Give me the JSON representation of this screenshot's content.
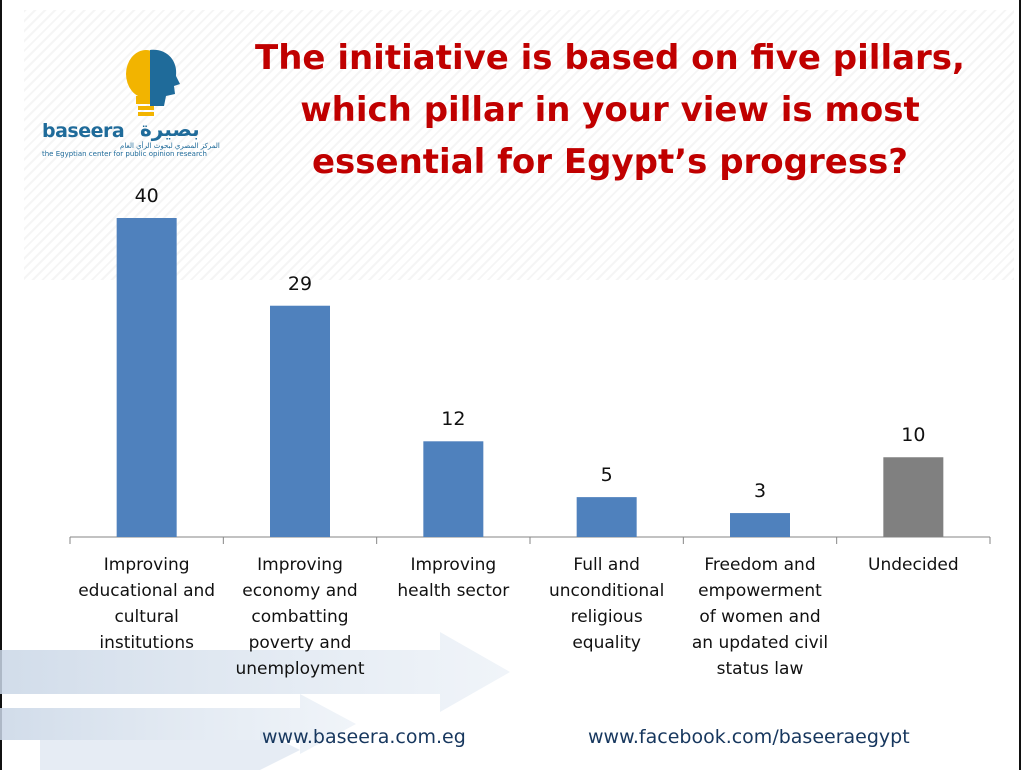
{
  "slide": {
    "title": "The initiative is based on five pillars,\nwhich pillar in your view is most\nessential for Egypt’s progress?",
    "logo": {
      "name": "baseera",
      "arabic_name": "بصيرة",
      "tagline": "the Egyptian center for public opinion research",
      "arabic_tagline": "المركز المصري لبحوث الرأي العام"
    },
    "footer": {
      "website": "www.baseera.com.eg",
      "facebook": "www.facebook.com/baseeraegypt"
    }
  },
  "chart_data": {
    "type": "bar",
    "title": "The initiative is based on five pillars, which pillar in your view is most essential for Egypt’s progress?",
    "categories": [
      "Improving educational and cultural institutions",
      "Improving economy and combatting poverty and unemployment",
      "Improving health sector",
      "Full and unconditional religious equality",
      "Freedom and empowerment of women and an updated civil status law",
      "Undecided"
    ],
    "category_lines": [
      [
        "Improving",
        "educational and",
        "cultural",
        "institutions"
      ],
      [
        "Improving",
        "economy and",
        "combatting",
        "poverty and",
        "unemployment"
      ],
      [
        "Improving",
        "health sector"
      ],
      [
        "Full and",
        "unconditional",
        "religious",
        "equality"
      ],
      [
        "Freedom and",
        "empowerment",
        "of women and",
        "an updated civil",
        "status law"
      ],
      [
        "Undecided"
      ]
    ],
    "values": [
      40,
      29,
      12,
      5,
      3,
      10
    ],
    "data_labels": [
      "40",
      "29",
      "12",
      "5",
      "3",
      "10"
    ],
    "colors": [
      "#4f81bd",
      "#4f81bd",
      "#4f81bd",
      "#4f81bd",
      "#4f81bd",
      "#808080"
    ],
    "ylim": [
      0,
      40
    ],
    "grid": false,
    "legend": "none",
    "xlabel": "",
    "ylabel": ""
  }
}
